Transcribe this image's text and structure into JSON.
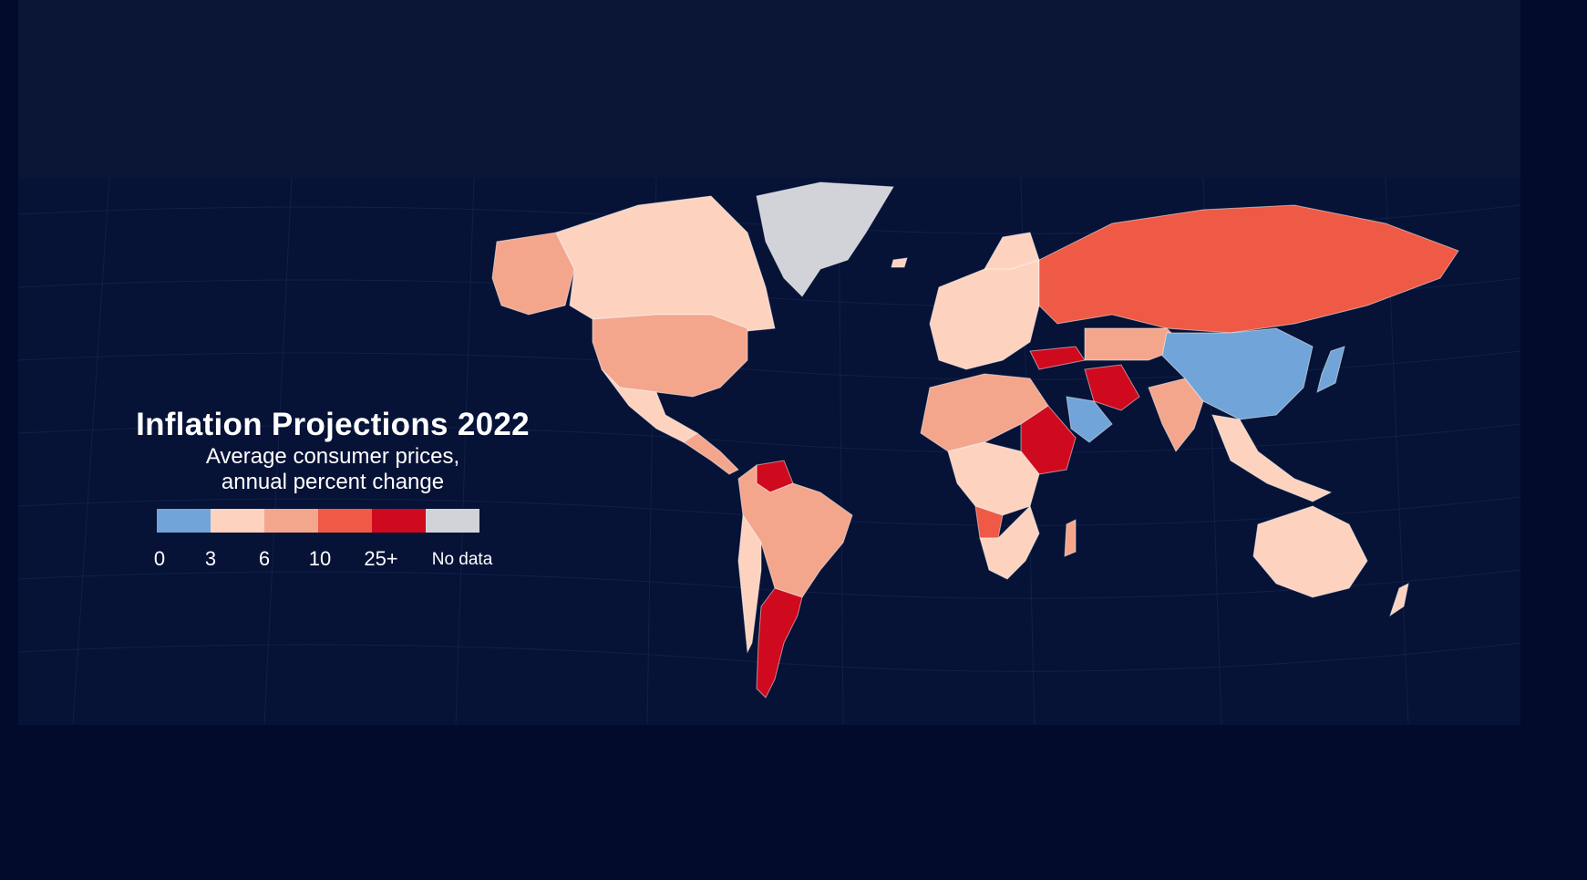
{
  "legend": {
    "title": "Inflation Projections 2022",
    "subtitle_line1": "Average consumer prices,",
    "subtitle_line2": "annual percent change",
    "bins": [
      {
        "color": "#71a4d8"
      },
      {
        "color": "#fdd3c0"
      },
      {
        "color": "#f4a68d"
      },
      {
        "color": "#ee5a45"
      },
      {
        "color": "#cf0a1e"
      },
      {
        "color": "#d1d3d8"
      }
    ],
    "ticks": [
      "0",
      "3",
      "6",
      "10",
      "25+"
    ],
    "no_data_label": "No data"
  },
  "colors": {
    "background": "#030b2c",
    "band": "#0b1637",
    "map_bg": "#061236",
    "below3": "#71a4d8",
    "from3to6": "#fdd3c0",
    "from6to10": "#f4a68d",
    "from10to25": "#ee5a45",
    "over25": "#cf0a1e",
    "no_data": "#d1d3d8"
  }
}
